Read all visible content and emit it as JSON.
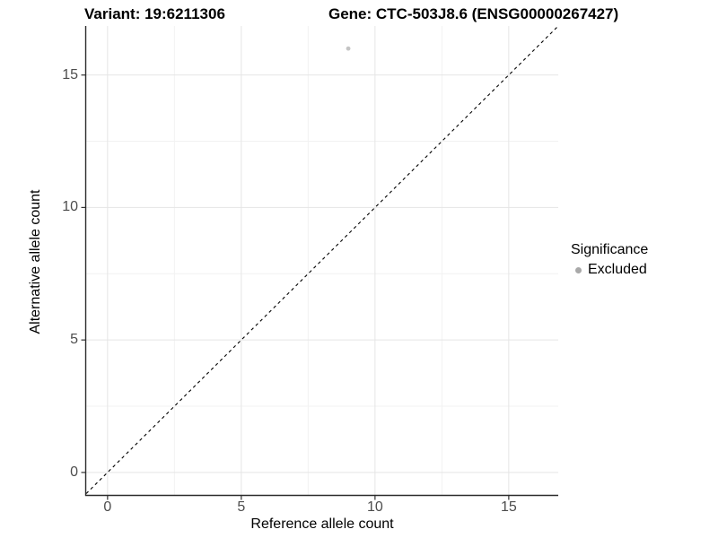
{
  "chart_data": {
    "type": "scatter",
    "title_left": "Variant: 19:6211306",
    "title_right": "Gene: CTC-503J8.6 (ENSG00000267427)",
    "xlabel": "Reference allele count",
    "ylabel": "Alternative allele count",
    "x_ticks": [
      0,
      5,
      10,
      15
    ],
    "y_ticks": [
      0,
      5,
      10,
      15
    ],
    "x_minor_breaks": [
      2.5,
      7.5,
      12.5
    ],
    "y_minor_breaks": [
      2.5,
      7.5,
      12.5
    ],
    "xlim": [
      -0.8,
      16.85
    ],
    "ylim": [
      -0.85,
      16.85
    ],
    "grid": true,
    "points": [
      {
        "x": 9,
        "y": 16,
        "significance": "Excluded"
      }
    ],
    "reference_line": {
      "slope": 1,
      "intercept": 0,
      "style": "dashed",
      "color": "#000000"
    },
    "legend": {
      "title": "Significance",
      "position": "right",
      "items": [
        {
          "label": "Excluded",
          "color": "#a9a9a9"
        }
      ]
    },
    "colors": {
      "point": "#c4c4c4",
      "grid_major": "#e5e5e5",
      "grid_minor": "#f2f2f2",
      "axis_line": "#2b2b2b",
      "tick_mark": "#333333",
      "tick_label": "#4d4d4d"
    }
  }
}
